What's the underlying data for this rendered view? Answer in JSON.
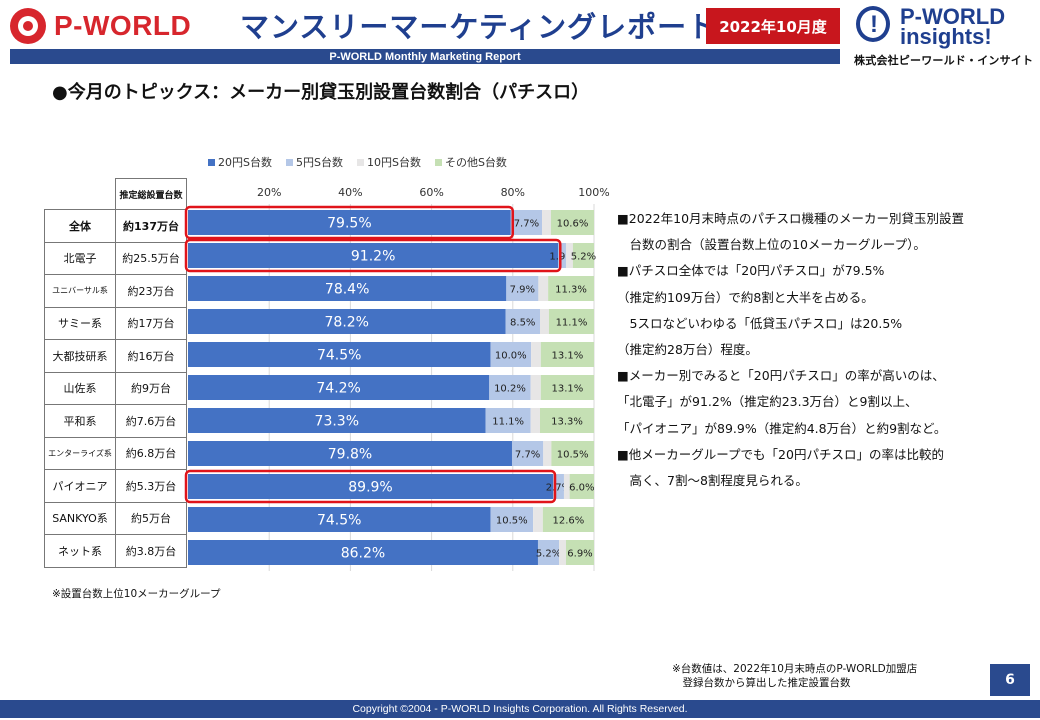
{
  "header": {
    "logo_left_text": "P-WORLD",
    "title": "マンスリーマーケティングレポート",
    "date_badge": "2022年10月度",
    "logo_right_line1": "P-WORLD",
    "logo_right_line2": "insights!",
    "logo_right_line3": "株式会社ピーワールド・インサイト",
    "subtitle": "P-WORLD Monthly Marketing Report"
  },
  "topic_title": "●今月のトピックス：メーカー別貸玉別設置台数割合（パチスロ）",
  "table": {
    "header_col2": "推定総設置台数",
    "rows": [
      {
        "maker": "全体",
        "units": "約137万台",
        "bold": true
      },
      {
        "maker": "北電子",
        "units": "約25.5万台"
      },
      {
        "maker": "ユニバーサル系",
        "units": "約23万台",
        "small": true
      },
      {
        "maker": "サミー系",
        "units": "約17万台"
      },
      {
        "maker": "大都技研系",
        "units": "約16万台"
      },
      {
        "maker": "山佐系",
        "units": "約9万台"
      },
      {
        "maker": "平和系",
        "units": "約7.6万台"
      },
      {
        "maker": "エンターライズ系",
        "units": "約6.8万台",
        "small": true
      },
      {
        "maker": "パイオニア",
        "units": "約5.3万台"
      },
      {
        "maker": "SANKYO系",
        "units": "約5万台"
      },
      {
        "maker": "ネット系",
        "units": "約3.8万台"
      }
    ]
  },
  "chart_data": {
    "type": "bar",
    "orientation": "horizontal",
    "stacked": true,
    "categories": [
      "全体",
      "北電子",
      "ユニバーサル系",
      "サミー系",
      "大都技研系",
      "山佐系",
      "平和系",
      "エンターライズ系",
      "パイオニア",
      "SANKYO系",
      "ネット系"
    ],
    "series": [
      {
        "name": "20円S台数",
        "color": "#4472c4",
        "values": [
          79.5,
          91.2,
          78.4,
          78.2,
          74.5,
          74.2,
          73.3,
          79.8,
          89.9,
          74.5,
          86.2
        ],
        "labels": [
          "79.5%",
          "91.2%",
          "78.4%",
          "78.2%",
          "74.5%",
          "74.2%",
          "73.3%",
          "79.8%",
          "89.9%",
          "74.5%",
          "86.2%"
        ]
      },
      {
        "name": "5円S台数",
        "color": "#b4c7e7",
        "values": [
          7.7,
          1.9,
          7.9,
          8.5,
          10.0,
          10.2,
          11.1,
          7.7,
          2.7,
          10.5,
          5.2
        ],
        "labels": [
          "7.7%",
          "1.9%",
          "7.9%",
          "8.5%",
          "10.0%",
          "10.2%",
          "11.1%",
          "7.7%",
          "2.7%",
          "10.5%",
          "5.2%"
        ]
      },
      {
        "name": "10円S台数",
        "color": "#e7e6e6",
        "values": [
          2.2,
          1.7,
          2.4,
          2.2,
          2.4,
          2.5,
          2.3,
          2.0,
          1.4,
          2.4,
          1.7
        ],
        "labels": []
      },
      {
        "name": "その他S台数",
        "color": "#c5e0b4",
        "values": [
          10.6,
          5.2,
          11.3,
          11.1,
          13.1,
          13.1,
          13.3,
          10.5,
          6.0,
          12.6,
          6.9
        ],
        "labels": [
          "10.6%",
          "5.2%",
          "11.3%",
          "11.1%",
          "13.1%",
          "13.1%",
          "13.3%",
          "10.5%",
          "6.0%",
          "12.6%",
          "6.9%"
        ]
      }
    ],
    "x_ticks": [
      "20%",
      "40%",
      "60%",
      "80%",
      "100%"
    ],
    "xlim": [
      0,
      100
    ],
    "grid": true,
    "legend_position": "top",
    "highlighted_categories": [
      "全体",
      "北電子",
      "パイオニア"
    ]
  },
  "notes": [
    "■2022年10月末時点のパチスロ機種のメーカー別貸玉別設置",
    "　台数の割合（設置台数上位の10メーカーグループ）。",
    "■パチスロ全体では「20円パチスロ」が79.5%",
    "（推定約109万台）で約8割と大半を占める。",
    "　5スロなどいわゆる「低貸玉パチスロ」は20.5%",
    "（推定約28万台）程度。",
    "■メーカー別でみると「20円パチスロ」の率が高いのは、",
    "「北電子」が91.2%（推定約23.3万台）と9割以上、",
    "「パイオニア」が89.9%（推定約4.8万台）と約9割など。",
    "■他メーカーグループでも「20円パチスロ」の率は比較的",
    "　高く、7割〜8割程度見られる。"
  ],
  "footnote_left": "※設置台数上位10メーカーグループ",
  "footnote_right_1": "※台数値は、2022年10月末時点のP-WORLD加盟店",
  "footnote_right_2": "　登録台数から算出した推定設置台数",
  "page_number": "6",
  "copyright": "Copyright ©2004 -  P-WORLD Insights Corporation. All Rights Reserved."
}
